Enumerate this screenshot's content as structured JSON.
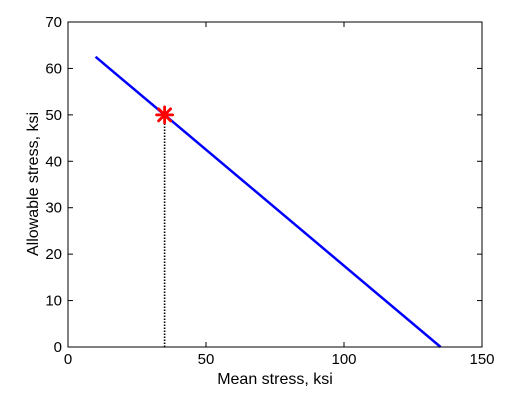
{
  "chart_data": {
    "type": "line",
    "xlabel": "Mean stress, ksi",
    "ylabel": "Allowable stress, ksi",
    "xlim": [
      0,
      150
    ],
    "ylim": [
      0,
      70
    ],
    "x_ticks": [
      "0",
      "50",
      "100",
      "150"
    ],
    "y_ticks": [
      "0",
      "10",
      "20",
      "30",
      "40",
      "50",
      "60",
      "70"
    ],
    "grid": false,
    "series": [
      {
        "style": "solid",
        "color": "#0000ff",
        "points": [
          [
            10,
            62.5
          ],
          [
            135,
            0
          ]
        ]
      },
      {
        "style": "dotted",
        "color": "#000000",
        "points": [
          [
            35,
            0
          ],
          [
            35,
            50
          ]
        ]
      },
      {
        "style": "marker",
        "marker": "asterisk",
        "color": "#ff0000",
        "points": [
          [
            35,
            50
          ]
        ]
      }
    ]
  }
}
